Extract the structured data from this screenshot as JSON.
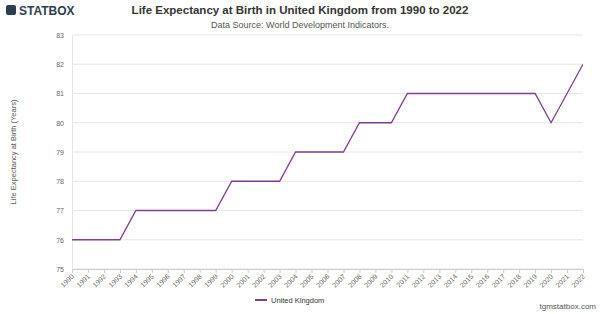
{
  "chart_data": {
    "type": "line",
    "title": "Life Expectancy at Birth in United Kingdom from 1990 to 2022",
    "subtitle": "Data Source: World Development Indicators.",
    "y_label": "Life Expectancy at Birth (Years)",
    "annotations": [
      "STATBOX",
      "tgmstatbox.com"
    ],
    "x": [
      1990,
      1991,
      1992,
      1993,
      1994,
      1995,
      1996,
      1997,
      1998,
      1999,
      2000,
      2001,
      2002,
      2003,
      2004,
      2005,
      2006,
      2007,
      2008,
      2009,
      2010,
      2011,
      2012,
      2013,
      2014,
      2015,
      2016,
      2017,
      2018,
      2019,
      2020,
      2021,
      2022
    ],
    "series": [
      {
        "name": "United Kingdom",
        "color": "#7e3f8f",
        "values": [
          76,
          76,
          76,
          76,
          77,
          77,
          77,
          77,
          77,
          77,
          78,
          78,
          78,
          78,
          79,
          79,
          79,
          79,
          80,
          80,
          80,
          81,
          81,
          81,
          81,
          81,
          81,
          81,
          81,
          81,
          80,
          81,
          82
        ]
      }
    ],
    "xlim": [
      1990,
      2022
    ],
    "xticks": [
      1990,
      1991,
      1992,
      1993,
      1994,
      1995,
      1996,
      1997,
      1998,
      1999,
      2000,
      2001,
      2002,
      2003,
      2004,
      2005,
      2006,
      2007,
      2008,
      2009,
      2010,
      2011,
      2012,
      2013,
      2014,
      2015,
      2016,
      2017,
      2018,
      2019,
      2020,
      2021,
      2022
    ],
    "ylim": [
      75,
      83
    ],
    "yticks": [
      75,
      76,
      77,
      78,
      79,
      80,
      81,
      82,
      83
    ],
    "grid": true,
    "legend": "bottom"
  }
}
